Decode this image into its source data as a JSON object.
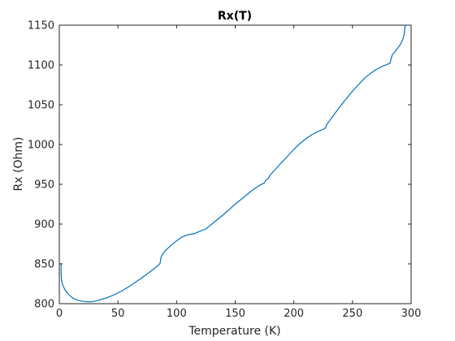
{
  "chart_data": {
    "type": "line",
    "title": "Rx(T)",
    "xlabel": "Temperature (K)",
    "ylabel": "Rx (Ohm)",
    "xlim": [
      0,
      300
    ],
    "ylim": [
      800,
      1150
    ],
    "xticks": [
      0,
      50,
      100,
      150,
      200,
      250,
      300
    ],
    "yticks": [
      800,
      850,
      900,
      950,
      1000,
      1050,
      1100,
      1150
    ],
    "grid": false,
    "colors": {
      "line": "#0072bd",
      "axes": "#262626"
    },
    "series": [
      {
        "x": [
          1.5,
          1.5,
          1.6,
          1.8,
          2.2,
          3,
          4,
          5,
          6,
          8,
          10,
          12,
          15,
          18,
          20,
          23,
          26,
          28,
          30,
          33,
          36,
          40,
          45,
          50,
          55,
          60,
          65,
          70,
          75,
          80,
          85,
          86,
          86.5,
          88,
          90,
          95,
          100,
          105,
          108,
          110,
          112,
          115,
          120,
          125,
          130,
          140,
          150,
          160,
          165,
          170,
          175,
          176,
          178,
          180,
          185,
          188,
          190,
          195,
          200,
          205,
          210,
          215,
          220,
          225,
          227,
          228,
          230,
          235,
          240,
          245,
          250,
          255,
          260,
          265,
          270,
          275,
          280,
          282,
          283,
          284,
          286,
          288,
          290,
          292,
          293,
          294,
          294.5,
          295
        ],
        "y": [
          851,
          842,
          836,
          831,
          827,
          823,
          820,
          817,
          815,
          811.5,
          809,
          806.5,
          804.5,
          803.5,
          803,
          802.5,
          802.3,
          802.5,
          803,
          804,
          805.5,
          807,
          810,
          813.5,
          817.5,
          822,
          827,
          832,
          837.5,
          843,
          849,
          851,
          857,
          862,
          866,
          873,
          879,
          884,
          885.5,
          887,
          887,
          888,
          891,
          894,
          900,
          912,
          925,
          937,
          943,
          948,
          952,
          955,
          957,
          962,
          970,
          975,
          978,
          986,
          994,
          1001,
          1007,
          1012,
          1016,
          1019,
          1021,
          1025,
          1029,
          1039,
          1049,
          1058,
          1067,
          1075,
          1083,
          1089,
          1094,
          1098,
          1101,
          1102,
          1108,
          1113,
          1116,
          1120,
          1124,
          1129,
          1133,
          1138,
          1144,
          1150
        ]
      }
    ]
  }
}
